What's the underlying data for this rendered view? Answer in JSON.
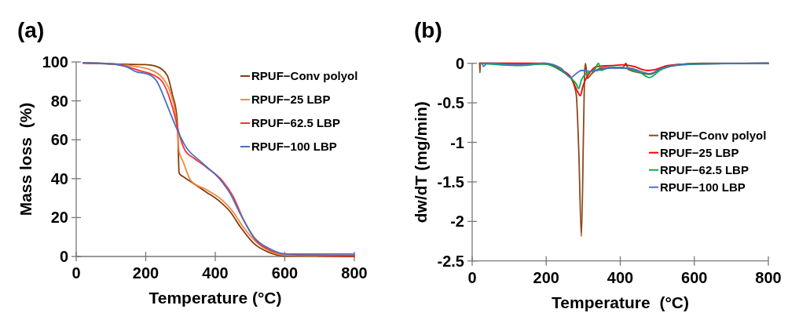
{
  "chart_data": [
    {
      "type": "line",
      "title": "(a)",
      "xlabel": "Temperature (°C)",
      "ylabel": "Mass loss  (%)",
      "xlim": [
        0,
        800
      ],
      "xticks": [
        0,
        200,
        400,
        600,
        800
      ],
      "ylim": [
        0,
        100
      ],
      "yticks": [
        0,
        20,
        40,
        60,
        80,
        100
      ],
      "grid": false,
      "legend": "top right",
      "marker": "none",
      "line_style": "solid",
      "series": [
        {
          "name": "RPUF−Conv polyol",
          "color": "#843c0c",
          "x": [
            20,
            100,
            200,
            232,
            262,
            277,
            289,
            292,
            296,
            300,
            308,
            330,
            375,
            413,
            443,
            473,
            511,
            556,
            601,
            700,
            800
          ],
          "values": [
            99.5,
            99,
            98.6,
            97.6,
            93,
            83,
            72.7,
            65,
            43,
            42,
            41,
            38.4,
            33,
            28.3,
            23,
            15,
            6.7,
            2,
            0.3,
            0.2,
            0
          ]
        },
        {
          "name": "RPUF−25 LBP",
          "color": "#f4883c",
          "x": [
            20,
            100,
            157,
            210,
            247,
            270,
            285,
            292,
            296,
            308,
            330,
            375,
            420,
            451,
            481,
            518,
            556,
            601,
            700,
            800
          ],
          "values": [
            99.5,
            99,
            98,
            96.2,
            92,
            84.8,
            74,
            63,
            54,
            48.5,
            39,
            34.3,
            29,
            23,
            15,
            7.4,
            2.7,
            0.7,
            0.5,
            0.5
          ]
        },
        {
          "name": "RPUF−62.5 LBP",
          "color": "#ff3030",
          "x": [
            20,
            100,
            157,
            187,
            210,
            247,
            270,
            285,
            292,
            300,
            315,
            338,
            375,
            420,
            451,
            481,
            518,
            556,
            601,
            700,
            800
          ],
          "values": [
            99.5,
            99,
            97,
            95.3,
            94.2,
            90,
            80.7,
            71.3,
            66,
            60.6,
            54,
            50.6,
            45.8,
            39,
            31,
            19,
            8,
            3.4,
            1.3,
            0.6,
            0.4
          ]
        },
        {
          "name": "RPUF−100 LBP",
          "color": "#4472c4",
          "x": [
            20,
            100,
            134,
            172,
            210,
            232,
            255,
            270,
            292,
            315,
            360,
            413,
            443,
            473,
            511,
            556,
            601,
            700,
            800
          ],
          "values": [
            99.5,
            99,
            98.3,
            95,
            93.5,
            90,
            80.7,
            74,
            64.6,
            56.5,
            48.5,
            39.7,
            32.3,
            21.5,
            10,
            4,
            1.3,
            1.3,
            1.3
          ]
        }
      ]
    },
    {
      "type": "line",
      "title": "(b)",
      "xlabel": "Temperature  (°C)",
      "ylabel": "dw/dT (mg/min)",
      "xlim": [
        0,
        800
      ],
      "xticks": [
        0,
        200,
        400,
        600,
        800
      ],
      "ylim": [
        -2.5,
        0
      ],
      "yticks": [
        -2.5,
        -2,
        -1.5,
        -1,
        -0.5,
        0
      ],
      "grid": false,
      "legend": "right",
      "marker": "none",
      "line_style": "solid",
      "series": [
        {
          "name": "RPUF−Conv polyol",
          "color": "#8b4a1c",
          "x": [
            20,
            21,
            22,
            60,
            196,
            239,
            267,
            281,
            288,
            295,
            301,
            304,
            306,
            311,
            323,
            352,
            408,
            415,
            422,
            465,
            479,
            507,
            549,
            620,
            800
          ],
          "values": [
            0,
            -0.12,
            0,
            0,
            -0.01,
            -0.09,
            -0.19,
            -0.39,
            -1.12,
            -2.19,
            -0.79,
            -0.1,
            0,
            -0.19,
            -0.13,
            -0.06,
            -0.05,
            0,
            -0.08,
            -0.13,
            -0.14,
            -0.08,
            -0.02,
            0,
            0
          ]
        },
        {
          "name": "RPUF−25 LBP",
          "color": "#ff0000",
          "x": [
            20,
            196,
            239,
            267,
            285,
            292,
            299,
            316,
            338,
            373,
            408,
            436,
            472,
            493,
            528,
            585,
            800
          ],
          "values": [
            0,
            0,
            -0.08,
            -0.18,
            -0.36,
            -0.41,
            -0.29,
            -0.13,
            -0.04,
            -0.03,
            -0.02,
            -0.04,
            -0.09,
            -0.08,
            -0.03,
            -0.01,
            0
          ]
        },
        {
          "name": "RPUF−62.5 LBP",
          "color": "#00b050",
          "x": [
            20,
            126,
            196,
            239,
            267,
            281,
            288,
            295,
            309,
            331,
            341,
            348,
            373,
            408,
            451,
            479,
            507,
            549,
            620,
            800
          ],
          "values": [
            0,
            -0.03,
            -0.01,
            -0.09,
            -0.19,
            -0.26,
            -0.32,
            -0.21,
            -0.13,
            -0.08,
            0,
            -0.09,
            -0.05,
            -0.06,
            -0.11,
            -0.18,
            -0.09,
            -0.03,
            -0.01,
            0
          ]
        },
        {
          "name": "RPUF−100 LBP",
          "color": "#4472c4",
          "x": [
            23,
            27,
            30,
            41,
            126,
            196,
            239,
            267,
            281,
            295,
            323,
            373,
            422,
            479,
            514,
            585,
            800
          ],
          "values": [
            0,
            0,
            -0.04,
            0,
            -0.02,
            0,
            -0.06,
            -0.18,
            -0.13,
            -0.09,
            -0.1,
            -0.06,
            -0.06,
            -0.13,
            -0.06,
            -0.01,
            0
          ]
        }
      ]
    }
  ]
}
